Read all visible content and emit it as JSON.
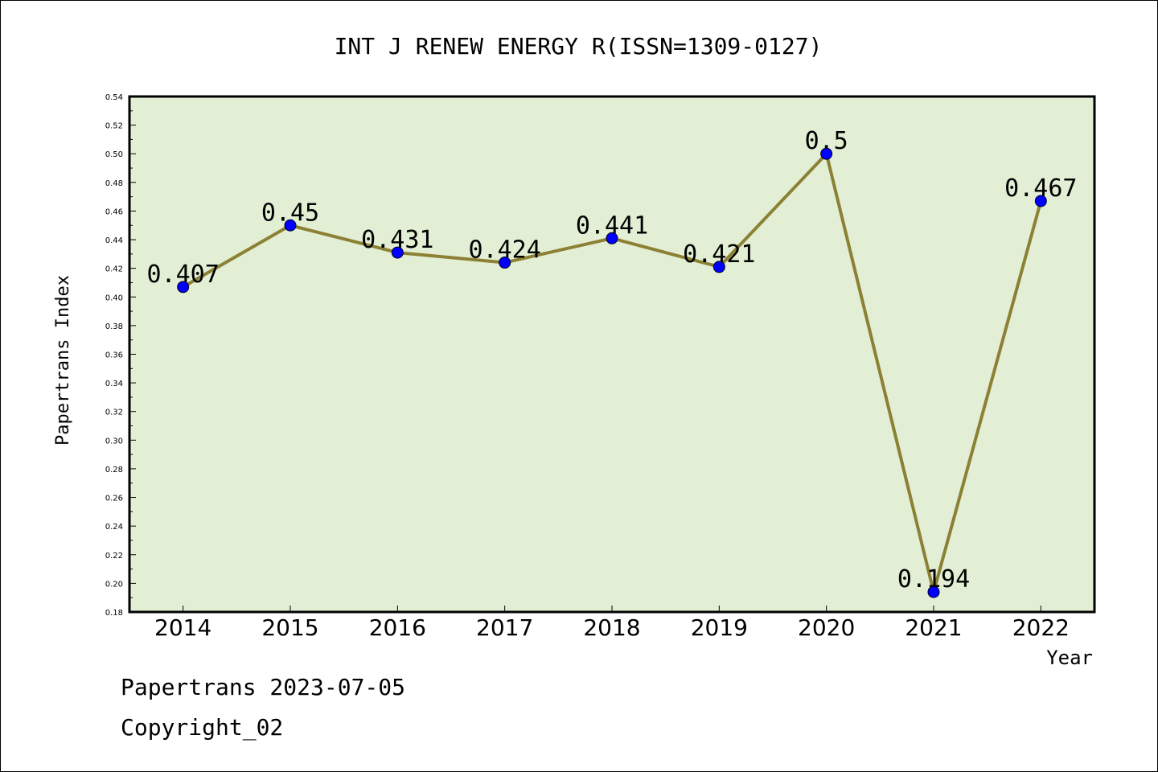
{
  "chart_data": {
    "type": "line",
    "title": "INT J RENEW ENERGY R(ISSN=1309-0127)",
    "xlabel": "Year",
    "ylabel": "Papertrans Index",
    "categories": [
      "2014",
      "2015",
      "2016",
      "2017",
      "2018",
      "2019",
      "2020",
      "2021",
      "2022"
    ],
    "series": [
      {
        "values": [
          0.407,
          0.45,
          0.431,
          0.424,
          0.441,
          0.421,
          0.5,
          0.194,
          0.467
        ],
        "labels": [
          "0.407",
          "0.45",
          "0.431",
          "0.424",
          "0.441",
          "0.421",
          "0.5",
          "0.194",
          "0.467"
        ]
      }
    ],
    "ylim": [
      0.18,
      0.54
    ],
    "yticks": [
      "0.18",
      "0.20",
      "0.22",
      "0.24",
      "0.26",
      "0.28",
      "0.30",
      "0.32",
      "0.34",
      "0.36",
      "0.38",
      "0.40",
      "0.42",
      "0.44",
      "0.46",
      "0.48",
      "0.50",
      "0.52",
      "0.54"
    ],
    "grid": false,
    "colors": {
      "plot_background": "#e2efd5",
      "line": "#8c8034",
      "marker": "#0000ff"
    }
  },
  "footer": {
    "line1": "Papertrans 2023-07-05",
    "line2": "Copyright_02"
  }
}
